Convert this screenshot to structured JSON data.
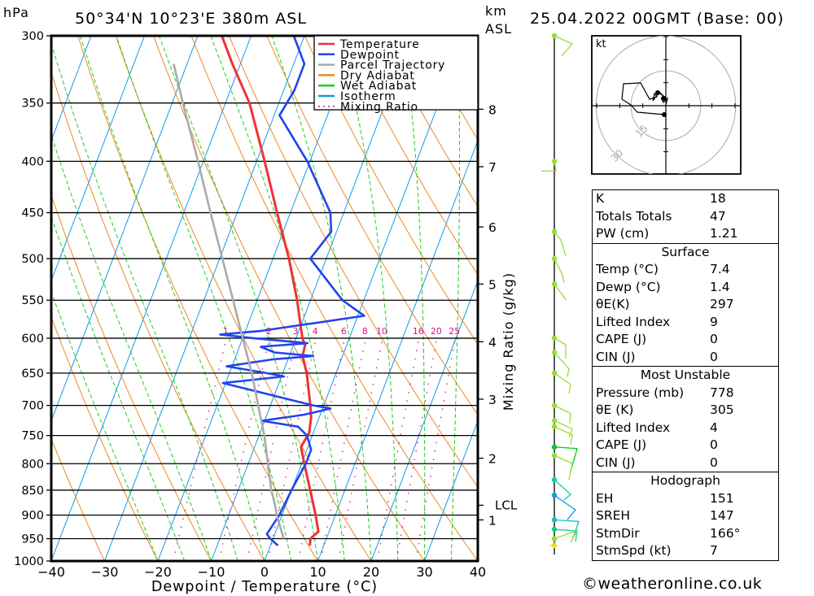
{
  "header": {
    "location": "50°34'N  10°23'E  380m  ASL",
    "datetime": "25.04.2022  00GMT  (Base: 00)",
    "left_unit": "hPa",
    "right_unit_line1": "km",
    "right_unit_line2": "ASL"
  },
  "chart_data": {
    "type": "skew-t",
    "xlabel": "Dewpoint / Temperature (°C)",
    "ylabel": "hPa",
    "right_axis_label": "Mixing Ratio (g/kg)",
    "xlim": [
      -40,
      40
    ],
    "ylim_hpa": [
      1000,
      300
    ],
    "x_ticks": [
      "−40",
      "−30",
      "−20",
      "−10",
      "0",
      "10",
      "20",
      "30",
      "40"
    ],
    "x_tick_values": [
      -40,
      -30,
      -20,
      -10,
      0,
      10,
      20,
      30,
      40
    ],
    "pressure_ticks": [
      300,
      350,
      400,
      450,
      500,
      550,
      600,
      650,
      700,
      750,
      800,
      850,
      900,
      950,
      1000
    ],
    "km_ticks": [
      {
        "km": "1",
        "hpa": 910
      },
      {
        "km": "2",
        "hpa": 790
      },
      {
        "km": "3",
        "hpa": 690
      },
      {
        "km": "4",
        "hpa": 605
      },
      {
        "km": "5",
        "hpa": 530
      },
      {
        "km": "6",
        "hpa": 465
      },
      {
        "km": "7",
        "hpa": 405
      },
      {
        "km": "8",
        "hpa": 355
      }
    ],
    "lcl": {
      "label": "LCL",
      "hpa": 880
    },
    "mixing_ratio_labels": [
      "1",
      "2",
      "3",
      "4",
      "6",
      "8",
      "10",
      "16",
      "20",
      "25"
    ],
    "mixing_ratio_values": [
      1,
      2,
      3,
      4,
      6,
      8,
      10,
      16,
      20,
      25
    ],
    "legend": [
      {
        "name": "Temperature",
        "color": "#ee3333",
        "style": "solid"
      },
      {
        "name": "Dewpoint",
        "color": "#2244ee",
        "style": "solid"
      },
      {
        "name": "Parcel Trajectory",
        "color": "#aaaaaa",
        "style": "solid"
      },
      {
        "name": "Dry Adiabat",
        "color": "#ee8822",
        "style": "solid"
      },
      {
        "name": "Wet Adiabat",
        "color": "#22cc22",
        "style": "solid"
      },
      {
        "name": "Isotherm",
        "color": "#1199ee",
        "style": "solid"
      },
      {
        "name": "Mixing Ratio",
        "color": "#dd1188",
        "style": "dotted"
      }
    ],
    "series": [
      {
        "name": "Temperature",
        "points": [
          [
            965,
            7.4
          ],
          [
            950,
            7.0
          ],
          [
            935,
            8.0
          ],
          [
            900,
            6.3
          ],
          [
            850,
            3.5
          ],
          [
            800,
            0.5
          ],
          [
            770,
            -1.3
          ],
          [
            745,
            -0.8
          ],
          [
            720,
            -1.5
          ],
          [
            700,
            -2.5
          ],
          [
            650,
            -5.5
          ],
          [
            625,
            -7.5
          ],
          [
            610,
            -7.8
          ],
          [
            600,
            -8.8
          ],
          [
            550,
            -12.5
          ],
          [
            500,
            -17.0
          ],
          [
            450,
            -22.5
          ],
          [
            400,
            -28.5
          ],
          [
            350,
            -35.5
          ],
          [
            320,
            -41.5
          ],
          [
            300,
            -45.5
          ]
        ]
      },
      {
        "name": "Dewpoint",
        "points": [
          [
            965,
            1.4
          ],
          [
            950,
            -0.5
          ],
          [
            940,
            -1.5
          ],
          [
            900,
            -0.5
          ],
          [
            850,
            0.0
          ],
          [
            800,
            0.8
          ],
          [
            775,
            0.8
          ],
          [
            750,
            -1.0
          ],
          [
            735,
            -3.3
          ],
          [
            725,
            -10.5
          ],
          [
            715,
            -3.0
          ],
          [
            705,
            1.5
          ],
          [
            700,
            -2.0
          ],
          [
            665,
            -20.5
          ],
          [
            655,
            -9.5
          ],
          [
            650,
            -13.0
          ],
          [
            640,
            -21.0
          ],
          [
            630,
            -13.0
          ],
          [
            625,
            -5.5
          ],
          [
            620,
            -13.0
          ],
          [
            612,
            -16.0
          ],
          [
            607,
            -7.5
          ],
          [
            600,
            -18.0
          ],
          [
            595,
            -24.5
          ],
          [
            590,
            -17.0
          ],
          [
            570,
            1.2
          ],
          [
            550,
            -4.0
          ],
          [
            500,
            -13.0
          ],
          [
            470,
            -11.0
          ],
          [
            450,
            -12.5
          ],
          [
            400,
            -20.5
          ],
          [
            360,
            -29.0
          ],
          [
            340,
            -28.0
          ],
          [
            320,
            -28.0
          ],
          [
            300,
            -32.0
          ]
        ]
      },
      {
        "name": "Parcel Trajectory",
        "points": [
          [
            950,
            2.0
          ],
          [
            900,
            -1.0
          ],
          [
            880,
            -2.0
          ],
          [
            850,
            -3.8
          ],
          [
            800,
            -6.3
          ],
          [
            750,
            -9.0
          ],
          [
            700,
            -12.3
          ],
          [
            650,
            -15.8
          ],
          [
            600,
            -20.0
          ],
          [
            550,
            -24.5
          ],
          [
            500,
            -29.5
          ],
          [
            450,
            -35.0
          ],
          [
            400,
            -41.0
          ],
          [
            350,
            -48.0
          ],
          [
            320,
            -52.5
          ]
        ]
      }
    ],
    "hodograph": {
      "unit_label": "kt",
      "rings_kt": [
        15,
        30,
        45
      ],
      "ring_labels": [
        "15",
        "30",
        "45"
      ],
      "storm_motion": {
        "dir_deg": 166,
        "spd_kt": 7
      }
    },
    "wind_barbs": [
      {
        "hpa": 300,
        "color": "#99dd33"
      },
      {
        "hpa": 400,
        "color": "#99dd33"
      },
      {
        "hpa": 470,
        "color": "#99dd33"
      },
      {
        "hpa": 500,
        "color": "#99dd33"
      },
      {
        "hpa": 530,
        "color": "#99dd33"
      },
      {
        "hpa": 600,
        "color": "#99dd33"
      },
      {
        "hpa": 620,
        "color": "#99dd33"
      },
      {
        "hpa": 650,
        "color": "#99dd33"
      },
      {
        "hpa": 700,
        "color": "#99dd33"
      },
      {
        "hpa": 725,
        "color": "#99dd33"
      },
      {
        "hpa": 735,
        "color": "#99dd33"
      },
      {
        "hpa": 770,
        "color": "#00cc22"
      },
      {
        "hpa": 785,
        "color": "#99dd33"
      },
      {
        "hpa": 830,
        "color": "#11ccaa"
      },
      {
        "hpa": 860,
        "color": "#1199ee"
      },
      {
        "hpa": 910,
        "color": "#11bbcc"
      },
      {
        "hpa": 930,
        "color": "#11cc88"
      },
      {
        "hpa": 950,
        "color": "#99dd33"
      },
      {
        "hpa": 965,
        "color": "#eedd22"
      }
    ]
  },
  "indices": {
    "top": [
      {
        "label": "K",
        "value": "18"
      },
      {
        "label": "Totals Totals",
        "value": "47"
      },
      {
        "label": "PW (cm)",
        "value": "1.21"
      }
    ],
    "surface": {
      "title": "Surface",
      "rows": [
        {
          "label": "Temp (°C)",
          "value": "7.4"
        },
        {
          "label": "Dewp (°C)",
          "value": "1.4"
        },
        {
          "label": "θE(K)",
          "value": "297"
        },
        {
          "label": "Lifted Index",
          "value": "9"
        },
        {
          "label": "CAPE (J)",
          "value": "0"
        },
        {
          "label": "CIN (J)",
          "value": "0"
        }
      ]
    },
    "most_unstable": {
      "title": "Most Unstable",
      "rows": [
        {
          "label": "Pressure (mb)",
          "value": "778"
        },
        {
          "label": "θE (K)",
          "value": "305"
        },
        {
          "label": "Lifted Index",
          "value": "4"
        },
        {
          "label": "CAPE (J)",
          "value": "0"
        },
        {
          "label": "CIN (J)",
          "value": "0"
        }
      ]
    },
    "hodograph": {
      "title": "Hodograph",
      "rows": [
        {
          "label": "EH",
          "value": "151"
        },
        {
          "label": "SREH",
          "value": "147"
        },
        {
          "label": "StmDir",
          "value": "166°"
        },
        {
          "label": "StmSpd (kt)",
          "value": "7"
        }
      ]
    }
  },
  "footer": {
    "copyright": "©weatheronline.co.uk"
  }
}
